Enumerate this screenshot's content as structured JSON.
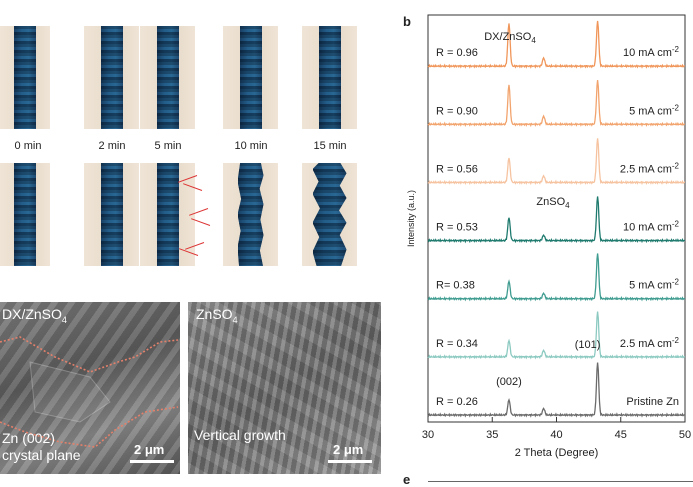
{
  "panel_a": {
    "times": [
      "0 min",
      "2 min",
      "5 min",
      "10 min",
      "15 min"
    ]
  },
  "sem": {
    "left": {
      "title": "DX/ZnSO",
      "title_sub": "4",
      "caption_line1": "Zn (002)",
      "caption_line2": "crystal plane",
      "scale": "2 μm"
    },
    "right": {
      "title": "ZnSO",
      "title_sub": "4",
      "caption": "Vertical growth",
      "scale": "2 μm"
    }
  },
  "panel_labels": {
    "b": "b",
    "e": "e"
  },
  "chart_data": {
    "type": "line",
    "xlabel": "2 Theta (Degree)",
    "ylabel": "Intensity (a.u.)",
    "xlim": [
      30,
      50
    ],
    "xticks": [
      30,
      35,
      40,
      45,
      50
    ],
    "groups": [
      {
        "label": "DX/ZnSO",
        "label_sub": "4"
      },
      {
        "label": "ZnSO",
        "label_sub": "4"
      }
    ],
    "peak_labels": [
      "(002)",
      "(101)"
    ],
    "peak_positions": [
      36.3,
      39.0,
      43.2
    ],
    "series": [
      {
        "name": "10 mA cm",
        "sup": "-2",
        "r": "R = 0.96",
        "color": "#f0965a",
        "peaks": [
          0.78,
          0.15,
          0.82
        ]
      },
      {
        "name": "5 mA cm",
        "sup": "-2",
        "r": "R = 0.90",
        "color": "#f2a46e",
        "peaks": [
          0.72,
          0.15,
          0.8
        ]
      },
      {
        "name": "2.5 mA cm",
        "sup": "-2",
        "r": "R = 0.56",
        "color": "#f6c3a0",
        "peaks": [
          0.45,
          0.12,
          0.8
        ]
      },
      {
        "name": "10 mA cm",
        "sup": "-2",
        "r": "R = 0.53",
        "color": "#1f7a6e",
        "peaks": [
          0.42,
          0.1,
          0.8
        ]
      },
      {
        "name": "5 mA cm",
        "sup": "-2",
        "r": "R= 0.38",
        "color": "#3f9c90",
        "peaks": [
          0.32,
          0.1,
          0.82
        ]
      },
      {
        "name": "2.5 mA cm",
        "sup": "-2",
        "r": "R = 0.34",
        "color": "#8ccac1",
        "peaks": [
          0.3,
          0.12,
          0.82
        ]
      },
      {
        "name": "Pristine Zn",
        "sup": "",
        "r": "R = 0.26",
        "color": "#6b6b6b",
        "peaks": [
          0.28,
          0.12,
          0.95
        ]
      }
    ]
  }
}
